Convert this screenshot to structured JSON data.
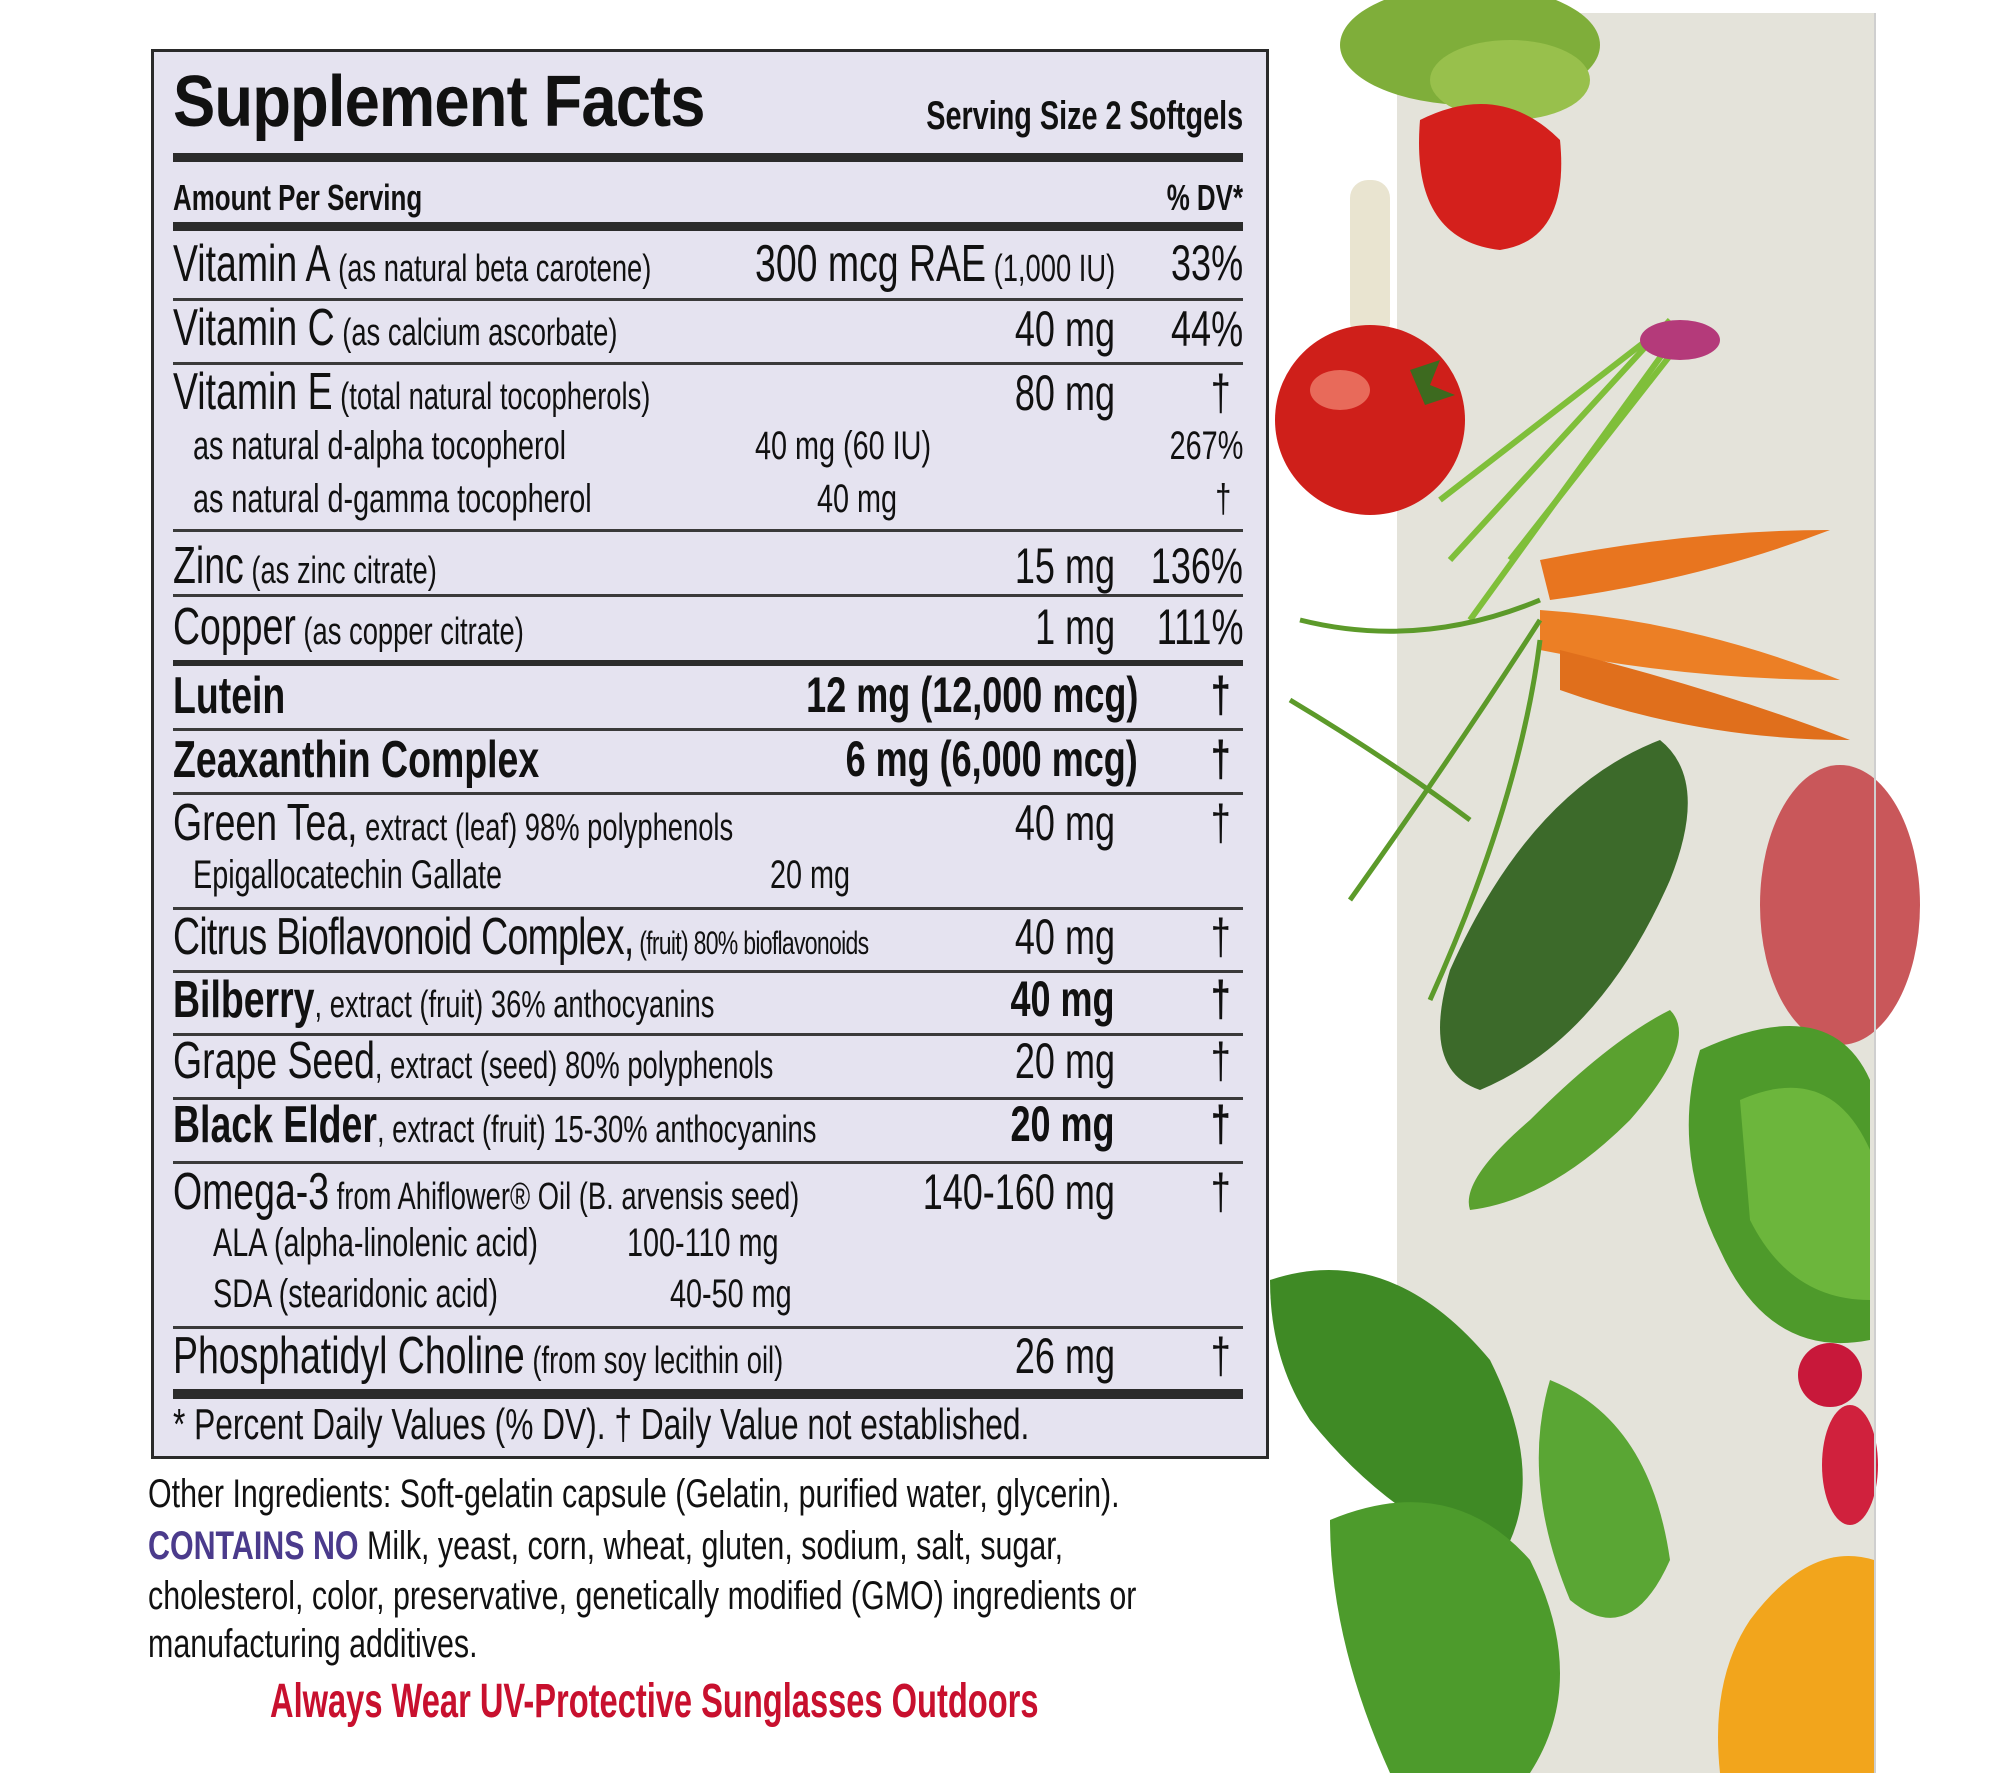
{
  "header": {
    "title": "Supplement Facts",
    "serving_size": "Serving Size 2 Softgels",
    "amount_per_serving": "Amount Per Serving",
    "dv_header": "% DV*"
  },
  "rows": {
    "vitamin_a": {
      "name": "Vitamin A",
      "desc": " (as natural beta carotene)",
      "amount": "300 mcg RAE",
      "amount_extra": " (1,000 IU)",
      "dv": "33%"
    },
    "vitamin_c": {
      "name": "Vitamin C",
      "desc": " (as calcium ascorbate)",
      "amount": "40 mg",
      "dv": "44%"
    },
    "vitamin_e": {
      "name": "Vitamin E",
      "desc": " (total natural tocopherols)",
      "amount": "80 mg",
      "dv": "†",
      "sub": [
        {
          "name": "as natural d-alpha tocopherol",
          "amount": "40 mg (60 IU)",
          "dv": "267%"
        },
        {
          "name": "as natural d-gamma tocopherol",
          "amount": "40 mg",
          "dv": "†"
        }
      ]
    },
    "zinc": {
      "name": "Zinc",
      "desc": " (as zinc citrate)",
      "amount": "15 mg",
      "dv": "136%"
    },
    "copper": {
      "name": "Copper",
      "desc": " (as copper citrate)",
      "amount": "1 mg",
      "dv": "111%"
    },
    "lutein": {
      "name": "Lutein",
      "amount": "12 mg (12,000 mcg)",
      "dv": "†"
    },
    "zeaxanthin": {
      "name": "Zeaxanthin Complex",
      "amount": "6 mg (6,000 mcg)",
      "dv": "†"
    },
    "green_tea": {
      "name": "Green Tea,",
      "desc": " extract (leaf) 98% polyphenols",
      "amount": "40 mg",
      "dv": "†",
      "sub": [
        {
          "name": "Epigallocatechin Gallate",
          "amount": "20 mg"
        }
      ]
    },
    "citrus": {
      "name": "Citrus Bioflavonoid Complex,",
      "desc": " (fruit) 80% bioflavonoids",
      "amount": "40 mg",
      "dv": "†"
    },
    "bilberry": {
      "name": "Bilberry",
      "desc": ", extract (fruit) 36% anthocyanins",
      "amount": "40 mg",
      "dv": "†"
    },
    "grape_seed": {
      "name": "Grape Seed",
      "desc": ", extract (seed) 80% polyphenols",
      "amount": "20 mg",
      "dv": "†"
    },
    "black_elder": {
      "name": "Black Elder",
      "desc": ", extract (fruit) 15-30% anthocyanins",
      "amount": "20 mg",
      "dv": "†"
    },
    "omega3": {
      "name": "Omega-3",
      "desc": " from Ahiflower® Oil (B. arvensis seed)",
      "amount": "140-160 mg",
      "dv": "†",
      "sub": [
        {
          "name": "ALA (alpha-linolenic acid)",
          "amount": "100-110 mg"
        },
        {
          "name": "SDA (stearidonic acid)",
          "amount": "40-50 mg"
        }
      ]
    },
    "phosphatidyl": {
      "name": "Phosphatidyl Choline",
      "desc": " (from soy lecithin oil)",
      "amount": "26 mg",
      "dv": "†"
    }
  },
  "footnote": "* Percent Daily Values (% DV). † Daily Value not established.",
  "other_ingredients": "Other Ingredients: Soft-gelatin capsule (Gelatin, purified water, glycerin).",
  "contains_no": {
    "label": "CONTAINS NO",
    "line1": " Milk, yeast, corn, wheat, gluten, sodium, salt, sugar,",
    "line2": "cholesterol, color, preservative, genetically modified (GMO) ingredients or",
    "line3": "manufacturing additives."
  },
  "warning": "Always Wear UV-Protective Sunglasses Outdoors",
  "colors": {
    "panel_bg": "#e5e3f0",
    "contains_no": "#4b3b8c",
    "warning": "#c8102e",
    "photo_bg": "#e4e3da"
  }
}
